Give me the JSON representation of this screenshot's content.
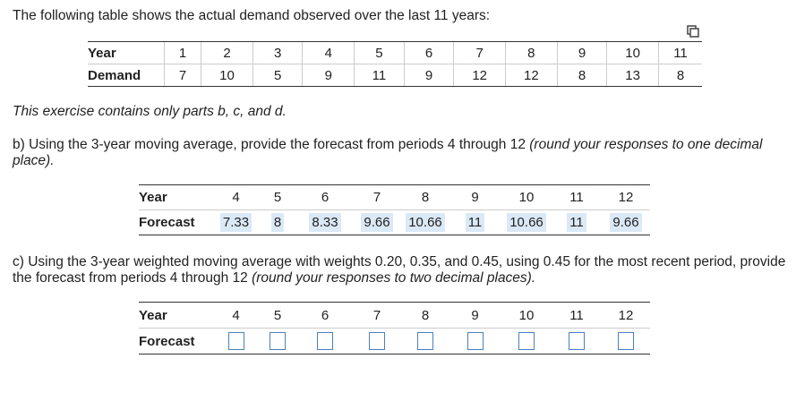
{
  "intro": "The following table shows the actual demand observed over the last 11 years:",
  "demand_table": {
    "row1_label": "Year",
    "row2_label": "Demand",
    "years": [
      "1",
      "2",
      "3",
      "4",
      "5",
      "6",
      "7",
      "8",
      "9",
      "10",
      "11"
    ],
    "demand": [
      "7",
      "10",
      "5",
      "9",
      "11",
      "9",
      "12",
      "12",
      "8",
      "13",
      "8"
    ]
  },
  "note": "This exercise contains only parts b, c, and d.",
  "part_b": {
    "prompt": "b) Using the 3-year moving average, provide the forecast from periods 4 through 12 ",
    "prompt_italic": "(round your responses to one decimal place).",
    "row1_label": "Year",
    "row2_label": "Forecast",
    "years": [
      "4",
      "5",
      "6",
      "7",
      "8",
      "9",
      "10",
      "11",
      "12"
    ],
    "forecast": [
      "7.33",
      "8",
      "8.33",
      "9.66",
      "10.66",
      "11",
      "10.66",
      "11",
      "9.66"
    ]
  },
  "part_c": {
    "prompt": "c) Using the 3-year weighted moving average with weights 0.20, 0.35, and 0.45, using 0.45 for the most recent period, provide the forecast from periods 4 through 12 ",
    "prompt_italic": "(round your responses to two decimal places).",
    "row1_label": "Year",
    "row2_label": "Forecast",
    "years": [
      "4",
      "5",
      "6",
      "7",
      "8",
      "9",
      "10",
      "11",
      "12"
    ]
  },
  "colors": {
    "input_border": "#4a7fc1",
    "highlight": "#dbe9f7"
  },
  "icons": {
    "copy": "copy-icon"
  }
}
